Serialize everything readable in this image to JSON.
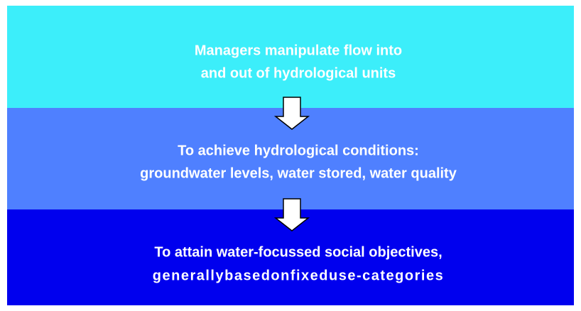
{
  "boxes": [
    {
      "lines": [
        "Managers manipulate flow into",
        "and out of hydrological units"
      ]
    },
    {
      "lines": [
        "To achieve hydrological conditions:",
        "groundwater levels, water stored, water quality"
      ]
    },
    {
      "lines": [
        "To attain water-focussed social objectives,",
        "generallybasedonfixeduse-categories"
      ]
    }
  ]
}
